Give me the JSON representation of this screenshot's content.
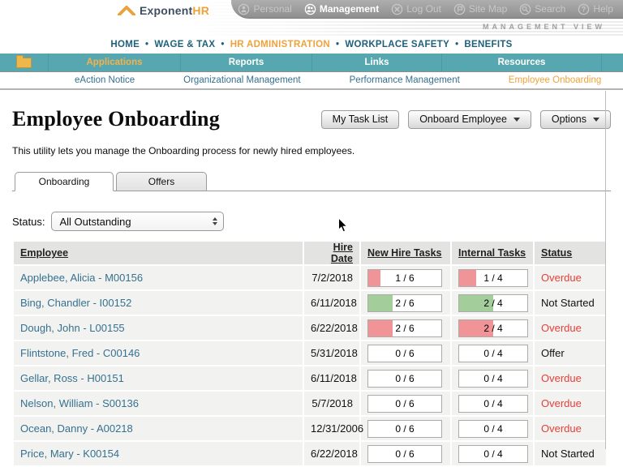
{
  "colors": {
    "teal": "#57A7B0",
    "accent_orange": "#EFA23B",
    "link_blue": "#35718F",
    "status_red": "#E5403A",
    "fill_red": "#F09498",
    "fill_green": "#A3CE9C"
  },
  "header": {
    "logo": {
      "brand": "Exponent",
      "brand_accent": "HR"
    },
    "view_banner": "MANAGEMENT VIEW",
    "utility_nav": [
      {
        "label": "Personal",
        "icon": "person-icon",
        "active": false
      },
      {
        "label": "Management",
        "icon": "people-icon",
        "active": true
      },
      {
        "label": "Log Out",
        "icon": "logout-icon",
        "active": false
      },
      {
        "label": "Site Map",
        "icon": "sitemap-icon",
        "active": false
      },
      {
        "label": "Search",
        "icon": "search-icon",
        "active": false
      },
      {
        "label": "Help",
        "icon": "help-icon",
        "active": false
      }
    ]
  },
  "primary_nav": {
    "separator": "•",
    "items": [
      {
        "label": "HOME",
        "active": false
      },
      {
        "label": "WAGE & TAX",
        "active": false
      },
      {
        "label": "HR ADMINISTRATION",
        "active": true
      },
      {
        "label": "WORKPLACE SAFETY",
        "active": false
      },
      {
        "label": "BENEFITS",
        "active": false
      }
    ]
  },
  "menu_bar": {
    "items": [
      {
        "label": "Applications",
        "active": true
      },
      {
        "label": "Reports",
        "active": false
      },
      {
        "label": "Links",
        "active": false
      },
      {
        "label": "Resources",
        "active": false
      }
    ]
  },
  "sub_nav": {
    "items": [
      {
        "label": "eAction Notice",
        "active": false
      },
      {
        "label": "Organizational Management",
        "active": false
      },
      {
        "label": "Performance Management",
        "active": false
      },
      {
        "label": "Employee Onboarding",
        "active": true
      }
    ]
  },
  "page": {
    "title": "Employee Onboarding",
    "description": "This utility lets you manage the Onboarding process for newly hired employees.",
    "buttons": [
      {
        "label": "My Task List",
        "dropdown": false
      },
      {
        "label": "Onboard Employee",
        "dropdown": true
      },
      {
        "label": "Options",
        "dropdown": true
      }
    ]
  },
  "tabs": [
    {
      "label": "Onboarding",
      "active": true
    },
    {
      "label": "Offers",
      "active": false
    }
  ],
  "filter": {
    "label": "Status:",
    "value": "All Outstanding"
  },
  "table": {
    "columns": [
      "Employee",
      "Hire Date",
      "New Hire Tasks",
      "Internal Tasks",
      "Status"
    ],
    "rows": [
      {
        "employee": "Applebee, Alicia - M00156",
        "hire_date": "7/2/2018",
        "new_hire_tasks": {
          "label": "1 / 6",
          "done": 1,
          "total": 6,
          "fill": "red"
        },
        "internal_tasks": {
          "label": "1 / 4",
          "done": 1,
          "total": 4,
          "fill": "red"
        },
        "status": "Overdue",
        "status_style": "red"
      },
      {
        "employee": "Bing, Chandler - I00152",
        "hire_date": "6/11/2018",
        "new_hire_tasks": {
          "label": "2 / 6",
          "done": 2,
          "total": 6,
          "fill": "green"
        },
        "internal_tasks": {
          "label": "2 / 4",
          "done": 2,
          "total": 4,
          "fill": "green"
        },
        "status": "Not Started",
        "status_style": "black"
      },
      {
        "employee": "Dough, John - L00155",
        "hire_date": "6/22/2018",
        "new_hire_tasks": {
          "label": "2 / 6",
          "done": 2,
          "total": 6,
          "fill": "red"
        },
        "internal_tasks": {
          "label": "2 / 4",
          "done": 2,
          "total": 4,
          "fill": "red"
        },
        "status": "Overdue",
        "status_style": "red"
      },
      {
        "employee": "Flintstone, Fred - C00146",
        "hire_date": "5/31/2018",
        "new_hire_tasks": {
          "label": "0 / 6",
          "done": 0,
          "total": 6,
          "fill": "none"
        },
        "internal_tasks": {
          "label": "0 / 4",
          "done": 0,
          "total": 4,
          "fill": "none"
        },
        "status": "Offer",
        "status_style": "black"
      },
      {
        "employee": "Gellar, Ross - H00151",
        "hire_date": "6/11/2018",
        "new_hire_tasks": {
          "label": "0 / 6",
          "done": 0,
          "total": 6,
          "fill": "none"
        },
        "internal_tasks": {
          "label": "0 / 4",
          "done": 0,
          "total": 4,
          "fill": "none"
        },
        "status": "Overdue",
        "status_style": "red"
      },
      {
        "employee": "Nelson, William - S00136",
        "hire_date": "5/7/2018",
        "new_hire_tasks": {
          "label": "0 / 6",
          "done": 0,
          "total": 6,
          "fill": "none"
        },
        "internal_tasks": {
          "label": "0 / 4",
          "done": 0,
          "total": 4,
          "fill": "none"
        },
        "status": "Overdue",
        "status_style": "red"
      },
      {
        "employee": "Ocean, Danny - A00218",
        "hire_date": "12/31/2006",
        "new_hire_tasks": {
          "label": "0 / 6",
          "done": 0,
          "total": 6,
          "fill": "none"
        },
        "internal_tasks": {
          "label": "0 / 4",
          "done": 0,
          "total": 4,
          "fill": "none"
        },
        "status": "Overdue",
        "status_style": "red"
      },
      {
        "employee": "Price, Mary - K00154",
        "hire_date": "6/22/2018",
        "new_hire_tasks": {
          "label": "0 / 6",
          "done": 0,
          "total": 6,
          "fill": "none"
        },
        "internal_tasks": {
          "label": "0 / 4",
          "done": 0,
          "total": 4,
          "fill": "none"
        },
        "status": "Not Started",
        "status_style": "black"
      }
    ]
  }
}
